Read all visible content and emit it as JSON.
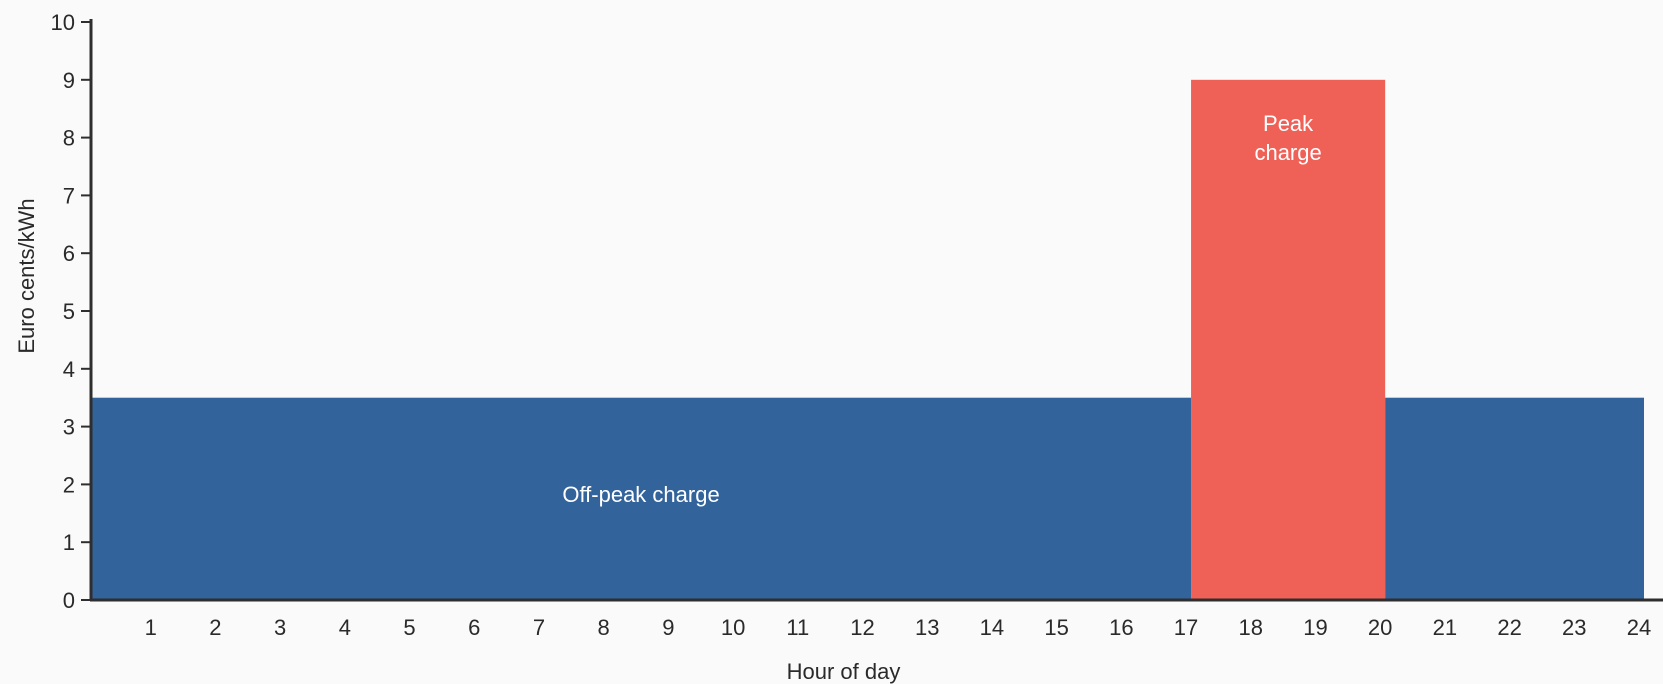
{
  "chart_data": {
    "type": "area",
    "title": "",
    "xlabel": "Hour of day",
    "ylabel": "Euro cents/kWh",
    "xlim": [
      0,
      24
    ],
    "ylim": [
      0,
      10
    ],
    "x_ticks": [
      1,
      2,
      3,
      4,
      5,
      6,
      7,
      8,
      9,
      10,
      11,
      12,
      13,
      14,
      15,
      16,
      17,
      18,
      19,
      20,
      21,
      22,
      23,
      24
    ],
    "y_ticks": [
      0,
      1,
      2,
      3,
      4,
      5,
      6,
      7,
      8,
      9,
      10
    ],
    "grid": false,
    "bands": [
      {
        "label": "Off-peak charge",
        "x_start": 0,
        "x_end": 17,
        "value": 3.5,
        "color": "#33639b",
        "show_label": true
      },
      {
        "label": "Peak charge",
        "label_lines": [
          "Peak",
          "charge"
        ],
        "x_start": 17,
        "x_end": 20,
        "value": 9,
        "color": "#ef6157",
        "show_label": true
      },
      {
        "label": "Off-peak charge",
        "x_start": 20,
        "x_end": 24,
        "value": 3.5,
        "color": "#33639b",
        "show_label": false
      }
    ]
  }
}
